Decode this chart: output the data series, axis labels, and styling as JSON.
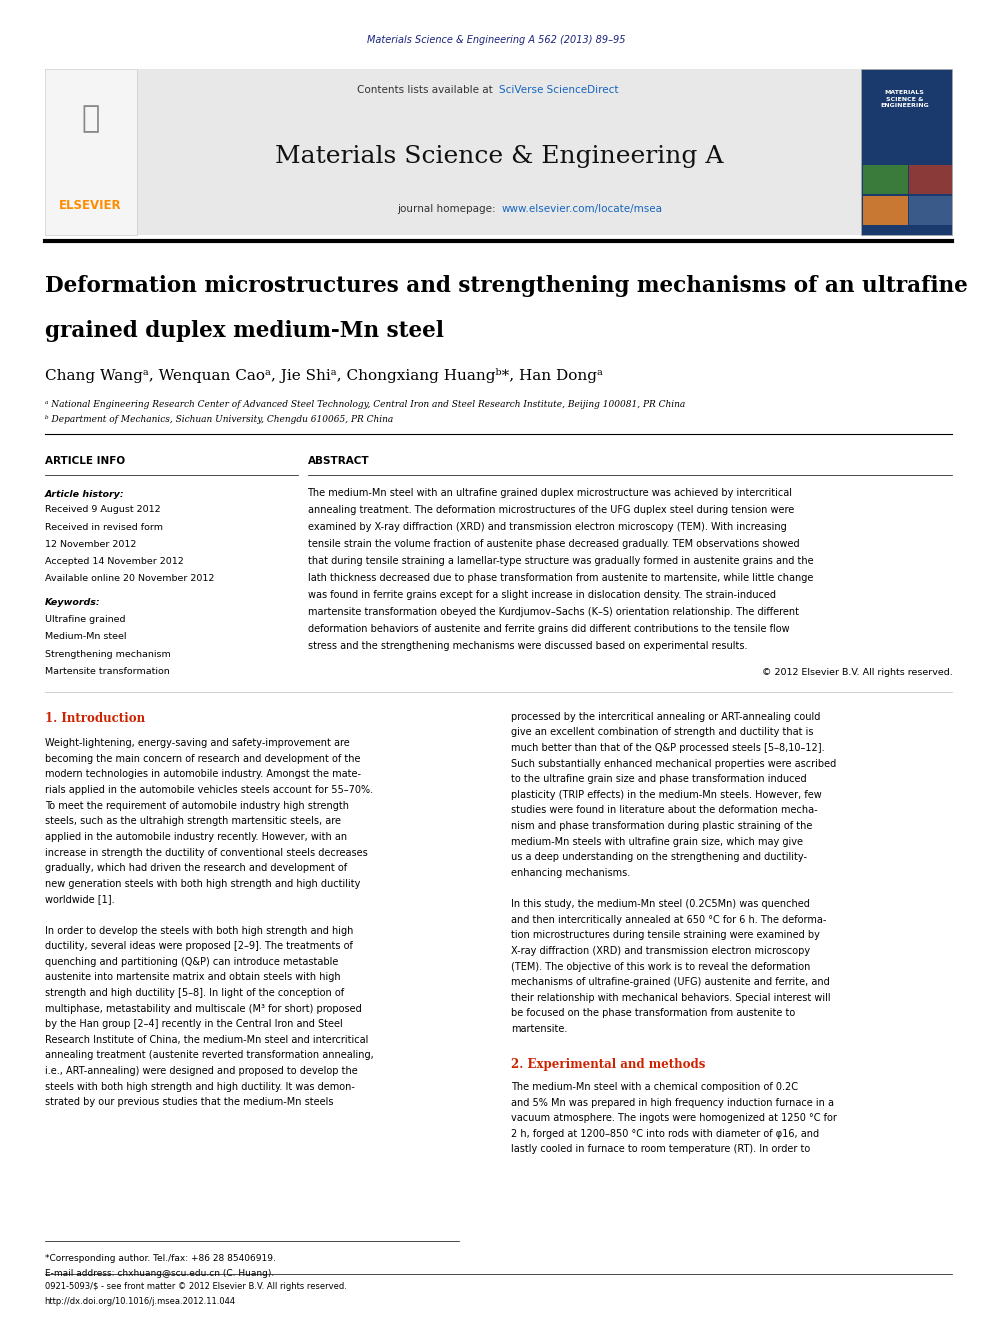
{
  "page_width": 9.92,
  "page_height": 13.23,
  "bg_color": "#ffffff",
  "journal_ref": "Materials Science & Engineering A 562 (2013) 89–95",
  "journal_ref_color": "#1a237e",
  "header_bg": "#e8e8e8",
  "header_title": "Materials Science & Engineering A",
  "header_subtitle_link": "www.elsevier.com/locate/msea",
  "header_contents": "Contents lists available at ",
  "header_sciverse": "SciVerse ScienceDirect",
  "elsevier_color": "#ff8c00",
  "link_color": "#1565c0",
  "paper_title_line1": "Deformation microstructures and strengthening mechanisms of an ultrafine",
  "paper_title_line2": "grained duplex medium-Mn steel",
  "authors": "Chang Wangᵃ, Wenquan Caoᵃ, Jie Shiᵃ, Chongxiang Huangᵇ*, Han Dongᵃ",
  "affil_a": "ᵃ National Engineering Research Center of Advanced Steel Technology, Central Iron and Steel Research Institute, Beijing 100081, PR China",
  "affil_b": "ᵇ Department of Mechanics, Sichuan University, Chengdu 610065, PR China",
  "section_article_info": "ARTICLE INFO",
  "section_abstract": "ABSTRACT",
  "article_history_label": "Article history:",
  "received_1": "Received 9 August 2012",
  "received_2": "Received in revised form",
  "received_2b": "12 November 2012",
  "accepted": "Accepted 14 November 2012",
  "available": "Available online 20 November 2012",
  "keywords_label": "Keywords:",
  "kw1": "Ultrafine grained",
  "kw2": "Medium-Mn steel",
  "kw3": "Strengthening mechanism",
  "kw4": "Martensite transformation",
  "copyright": "© 2012 Elsevier B.V. All rights reserved.",
  "intro_heading": "1. Introduction",
  "exp_heading": "2. Experimental and methods",
  "footnote_star": "*Corresponding author. Tel./fax: +86 28 85406919.",
  "footnote_email": "E-mail address: chxhuang@scu.edu.cn (C. Huang).",
  "bottom_line1": "0921-5093/$ - see front matter © 2012 Elsevier B.V. All rights reserved.",
  "bottom_line2": "http://dx.doi.org/10.1016/j.msea.2012.11.044",
  "heading_color": "#cc2200",
  "text_color": "#000000",
  "ml": 0.045,
  "mr": 0.96,
  "col_split": 0.295,
  "body_col_split": 0.503,
  "abstract_lines": [
    "The medium-Mn steel with an ultrafine grained duplex microstructure was achieved by intercritical",
    "annealing treatment. The deformation microstructures of the UFG duplex steel during tension were",
    "examined by X-ray diffraction (XRD) and transmission electron microscopy (TEM). With increasing",
    "tensile strain the volume fraction of austenite phase decreased gradually. TEM observations showed",
    "that during tensile straining a lamellar-type structure was gradually formed in austenite grains and the",
    "lath thickness decreased due to phase transformation from austenite to martensite, while little change",
    "was found in ferrite grains except for a slight increase in dislocation density. The strain-induced",
    "martensite transformation obeyed the Kurdjumov–Sachs (K–S) orientation relationship. The different",
    "deformation behaviors of austenite and ferrite grains did different contributions to the tensile flow",
    "stress and the strengthening mechanisms were discussed based on experimental results."
  ],
  "intro_body_left": [
    "Weight-lightening, energy-saving and safety-improvement are",
    "becoming the main concern of research and development of the",
    "modern technologies in automobile industry. Amongst the mate-",
    "rials applied in the automobile vehicles steels account for 55–70%.",
    "To meet the requirement of automobile industry high strength",
    "steels, such as the ultrahigh strength martensitic steels, are",
    "applied in the automobile industry recently. However, with an",
    "increase in strength the ductility of conventional steels decreases",
    "gradually, which had driven the research and development of",
    "new generation steels with both high strength and high ductility",
    "worldwide [1].",
    "",
    "In order to develop the steels with both high strength and high",
    "ductility, several ideas were proposed [2–9]. The treatments of",
    "quenching and partitioning (Q&P) can introduce metastable",
    "austenite into martensite matrix and obtain steels with high",
    "strength and high ductility [5–8]. In light of the conception of",
    "multiphase, metastability and multiscale (M³ for short) proposed",
    "by the Han group [2–4] recently in the Central Iron and Steel",
    "Research Institute of China, the medium-Mn steel and intercritical",
    "annealing treatment (austenite reverted transformation annealing,",
    "i.e., ART-annealing) were designed and proposed to develop the",
    "steels with both high strength and high ductility. It was demon-",
    "strated by our previous studies that the medium-Mn steels"
  ],
  "intro_body_right": [
    "processed by the intercritical annealing or ART-annealing could",
    "give an excellent combination of strength and ductility that is",
    "much better than that of the Q&P processed steels [5–8,10–12].",
    "Such substantially enhanced mechanical properties were ascribed",
    "to the ultrafine grain size and phase transformation induced",
    "plasticity (TRIP effects) in the medium-Mn steels. However, few",
    "studies were found in literature about the deformation mecha-",
    "nism and phase transformation during plastic straining of the",
    "medium-Mn steels with ultrafine grain size, which may give",
    "us a deep understanding on the strengthening and ductility-",
    "enhancing mechanisms.",
    "",
    "In this study, the medium-Mn steel (0.2C5Mn) was quenched",
    "and then intercritically annealed at 650 °C for 6 h. The deforma-",
    "tion microstructures during tensile straining were examined by",
    "X-ray diffraction (XRD) and transmission electron microscopy",
    "(TEM). The objective of this work is to reveal the deformation",
    "mechanisms of ultrafine-grained (UFG) austenite and ferrite, and",
    "their relationship with mechanical behaviors. Special interest will",
    "be focused on the phase transformation from austenite to",
    "martensite."
  ],
  "exp_body_right": [
    "The medium-Mn steel with a chemical composition of 0.2C",
    "and 5% Mn was prepared in high frequency induction furnace in a",
    "vacuum atmosphere. The ingots were homogenized at 1250 °C for",
    "2 h, forged at 1200–850 °C into rods with diameter of φ16, and",
    "lastly cooled in furnace to room temperature (RT). In order to"
  ]
}
